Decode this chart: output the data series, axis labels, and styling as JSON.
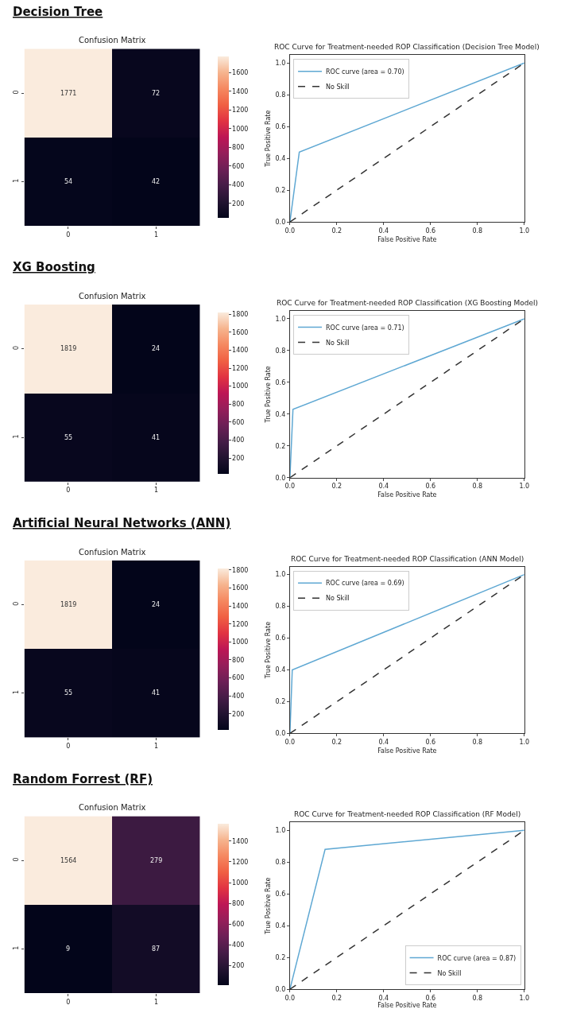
{
  "chart_data": [
    {
      "type": "heatmap",
      "title": "Confusion Matrix",
      "annotations": [
        "Decision Tree"
      ],
      "categories": [
        "0",
        "1"
      ],
      "y_categories": [
        "0",
        "1"
      ],
      "cells": [
        [
          1771,
          72
        ],
        [
          54,
          42
        ]
      ],
      "clim": [
        42,
        1771
      ],
      "cticks": [
        200,
        400,
        600,
        800,
        1000,
        1200,
        1400,
        1600
      ],
      "data_labels": true
    },
    {
      "type": "line",
      "title": "ROC Curve for Treatment-needed ROP Classification (Decision Tree Model)",
      "xlabel": "False Positive Rate",
      "ylabel": "True Positive Rate",
      "xlim": [
        0,
        1
      ],
      "ylim": [
        0,
        1.05
      ],
      "xticks": [
        {
          "value": 0,
          "label": "0.0"
        },
        {
          "value": 0.2,
          "label": "0.2"
        },
        {
          "value": 0.4,
          "label": "0.4"
        },
        {
          "value": 0.6,
          "label": "0.6"
        },
        {
          "value": 0.8,
          "label": "0.8"
        },
        {
          "value": 1,
          "label": "1.0"
        }
      ],
      "yticks": [
        {
          "value": 0,
          "label": "0.0"
        },
        {
          "value": 0.2,
          "label": "0.2"
        },
        {
          "value": 0.4,
          "label": "0.4"
        },
        {
          "value": 0.6,
          "label": "0.6"
        },
        {
          "value": 0.8,
          "label": "0.8"
        },
        {
          "value": 1,
          "label": "1.0"
        }
      ],
      "legend": "top left",
      "series": [
        {
          "name": "ROC curve (area = 0.70)",
          "color": "#5fa8d3",
          "x": [
            0,
            0.04,
            1
          ],
          "values": [
            0,
            0.44,
            1
          ]
        },
        {
          "name": "No Skill",
          "color": "#333333",
          "line_style": "dashed",
          "x": [
            0,
            1
          ],
          "values": [
            0,
            1
          ]
        }
      ]
    },
    {
      "type": "heatmap",
      "title": "Confusion Matrix",
      "annotations": [
        "XG Boosting"
      ],
      "categories": [
        "0",
        "1"
      ],
      "y_categories": [
        "0",
        "1"
      ],
      "cells": [
        [
          1819,
          24
        ],
        [
          55,
          41
        ]
      ],
      "clim": [
        24,
        1819
      ],
      "cticks": [
        200,
        400,
        600,
        800,
        1000,
        1200,
        1400,
        1600,
        1800
      ],
      "data_labels": true
    },
    {
      "type": "line",
      "title": "ROC Curve for Treatment-needed ROP Classification (XG Boosting Model)",
      "xlabel": "False Positive Rate",
      "ylabel": "True Positive Rate",
      "xlim": [
        0,
        1
      ],
      "ylim": [
        0,
        1.05
      ],
      "xticks": [
        {
          "value": 0,
          "label": "0.0"
        },
        {
          "value": 0.2,
          "label": "0.2"
        },
        {
          "value": 0.4,
          "label": "0.4"
        },
        {
          "value": 0.6,
          "label": "0.6"
        },
        {
          "value": 0.8,
          "label": "0.8"
        },
        {
          "value": 1,
          "label": "1.0"
        }
      ],
      "yticks": [
        {
          "value": 0,
          "label": "0.0"
        },
        {
          "value": 0.2,
          "label": "0.2"
        },
        {
          "value": 0.4,
          "label": "0.4"
        },
        {
          "value": 0.6,
          "label": "0.6"
        },
        {
          "value": 0.8,
          "label": "0.8"
        },
        {
          "value": 1,
          "label": "1.0"
        }
      ],
      "legend": "top left",
      "series": [
        {
          "name": "ROC curve (area = 0.71)",
          "color": "#5fa8d3",
          "x": [
            0,
            0.013,
            1
          ],
          "values": [
            0,
            0.43,
            1
          ]
        },
        {
          "name": "No Skill",
          "color": "#333333",
          "line_style": "dashed",
          "x": [
            0,
            1
          ],
          "values": [
            0,
            1
          ]
        }
      ]
    },
    {
      "type": "heatmap",
      "title": "Confusion Matrix",
      "annotations": [
        "Artificial Neural Networks (ANN)"
      ],
      "categories": [
        "0",
        "1"
      ],
      "y_categories": [
        "0",
        "1"
      ],
      "cells": [
        [
          1819,
          24
        ],
        [
          55,
          41
        ]
      ],
      "clim": [
        24,
        1819
      ],
      "cticks": [
        200,
        400,
        600,
        800,
        1000,
        1200,
        1400,
        1600,
        1800
      ],
      "data_labels": true
    },
    {
      "type": "line",
      "title": "ROC Curve for Treatment-needed ROP Classification (ANN Model)",
      "xlabel": "False Positive Rate",
      "ylabel": "True Positive Rate",
      "xlim": [
        0,
        1
      ],
      "ylim": [
        0,
        1.05
      ],
      "xticks": [
        {
          "value": 0,
          "label": "0.0"
        },
        {
          "value": 0.2,
          "label": "0.2"
        },
        {
          "value": 0.4,
          "label": "0.4"
        },
        {
          "value": 0.6,
          "label": "0.6"
        },
        {
          "value": 0.8,
          "label": "0.8"
        },
        {
          "value": 1,
          "label": "1.0"
        }
      ],
      "yticks": [
        {
          "value": 0,
          "label": "0.0"
        },
        {
          "value": 0.2,
          "label": "0.2"
        },
        {
          "value": 0.4,
          "label": "0.4"
        },
        {
          "value": 0.6,
          "label": "0.6"
        },
        {
          "value": 0.8,
          "label": "0.8"
        },
        {
          "value": 1,
          "label": "1.0"
        }
      ],
      "legend": "top left",
      "series": [
        {
          "name": "ROC curve (area = 0.69)",
          "color": "#5fa8d3",
          "x": [
            0,
            0.01,
            1
          ],
          "values": [
            0,
            0.4,
            1
          ]
        },
        {
          "name": "No Skill",
          "color": "#333333",
          "line_style": "dashed",
          "x": [
            0,
            1
          ],
          "values": [
            0,
            1
          ]
        }
      ]
    },
    {
      "type": "heatmap",
      "title": "Confusion Matrix",
      "annotations": [
        "Random Forrest (RF)"
      ],
      "categories": [
        "0",
        "1"
      ],
      "y_categories": [
        "0",
        "1"
      ],
      "cells": [
        [
          1564,
          279
        ],
        [
          9,
          87
        ]
      ],
      "clim": [
        9,
        1564
      ],
      "cticks": [
        200,
        400,
        600,
        800,
        1000,
        1200,
        1400
      ],
      "data_labels": true
    },
    {
      "type": "line",
      "title": "ROC Curve for Treatment-needed ROP Classification (RF Model)",
      "xlabel": "False Positive Rate",
      "ylabel": "True Positive Rate",
      "xlim": [
        0,
        1
      ],
      "ylim": [
        0,
        1.05
      ],
      "xticks": [
        {
          "value": 0,
          "label": "0.0"
        },
        {
          "value": 0.2,
          "label": "0.2"
        },
        {
          "value": 0.4,
          "label": "0.4"
        },
        {
          "value": 0.6,
          "label": "0.6"
        },
        {
          "value": 0.8,
          "label": "0.8"
        },
        {
          "value": 1,
          "label": "1.0"
        }
      ],
      "yticks": [
        {
          "value": 0,
          "label": "0.0"
        },
        {
          "value": 0.2,
          "label": "0.2"
        },
        {
          "value": 0.4,
          "label": "0.4"
        },
        {
          "value": 0.6,
          "label": "0.6"
        },
        {
          "value": 0.8,
          "label": "0.8"
        },
        {
          "value": 1,
          "label": "1.0"
        }
      ],
      "legend": "bottom right",
      "series": [
        {
          "name": "ROC curve (area = 0.87)",
          "color": "#5fa8d3",
          "x": [
            0,
            0.15,
            1
          ],
          "values": [
            0,
            0.88,
            1
          ]
        },
        {
          "name": "No Skill",
          "color": "#333333",
          "line_style": "dashed",
          "x": [
            0,
            1
          ],
          "values": [
            0,
            1
          ]
        }
      ]
    }
  ]
}
